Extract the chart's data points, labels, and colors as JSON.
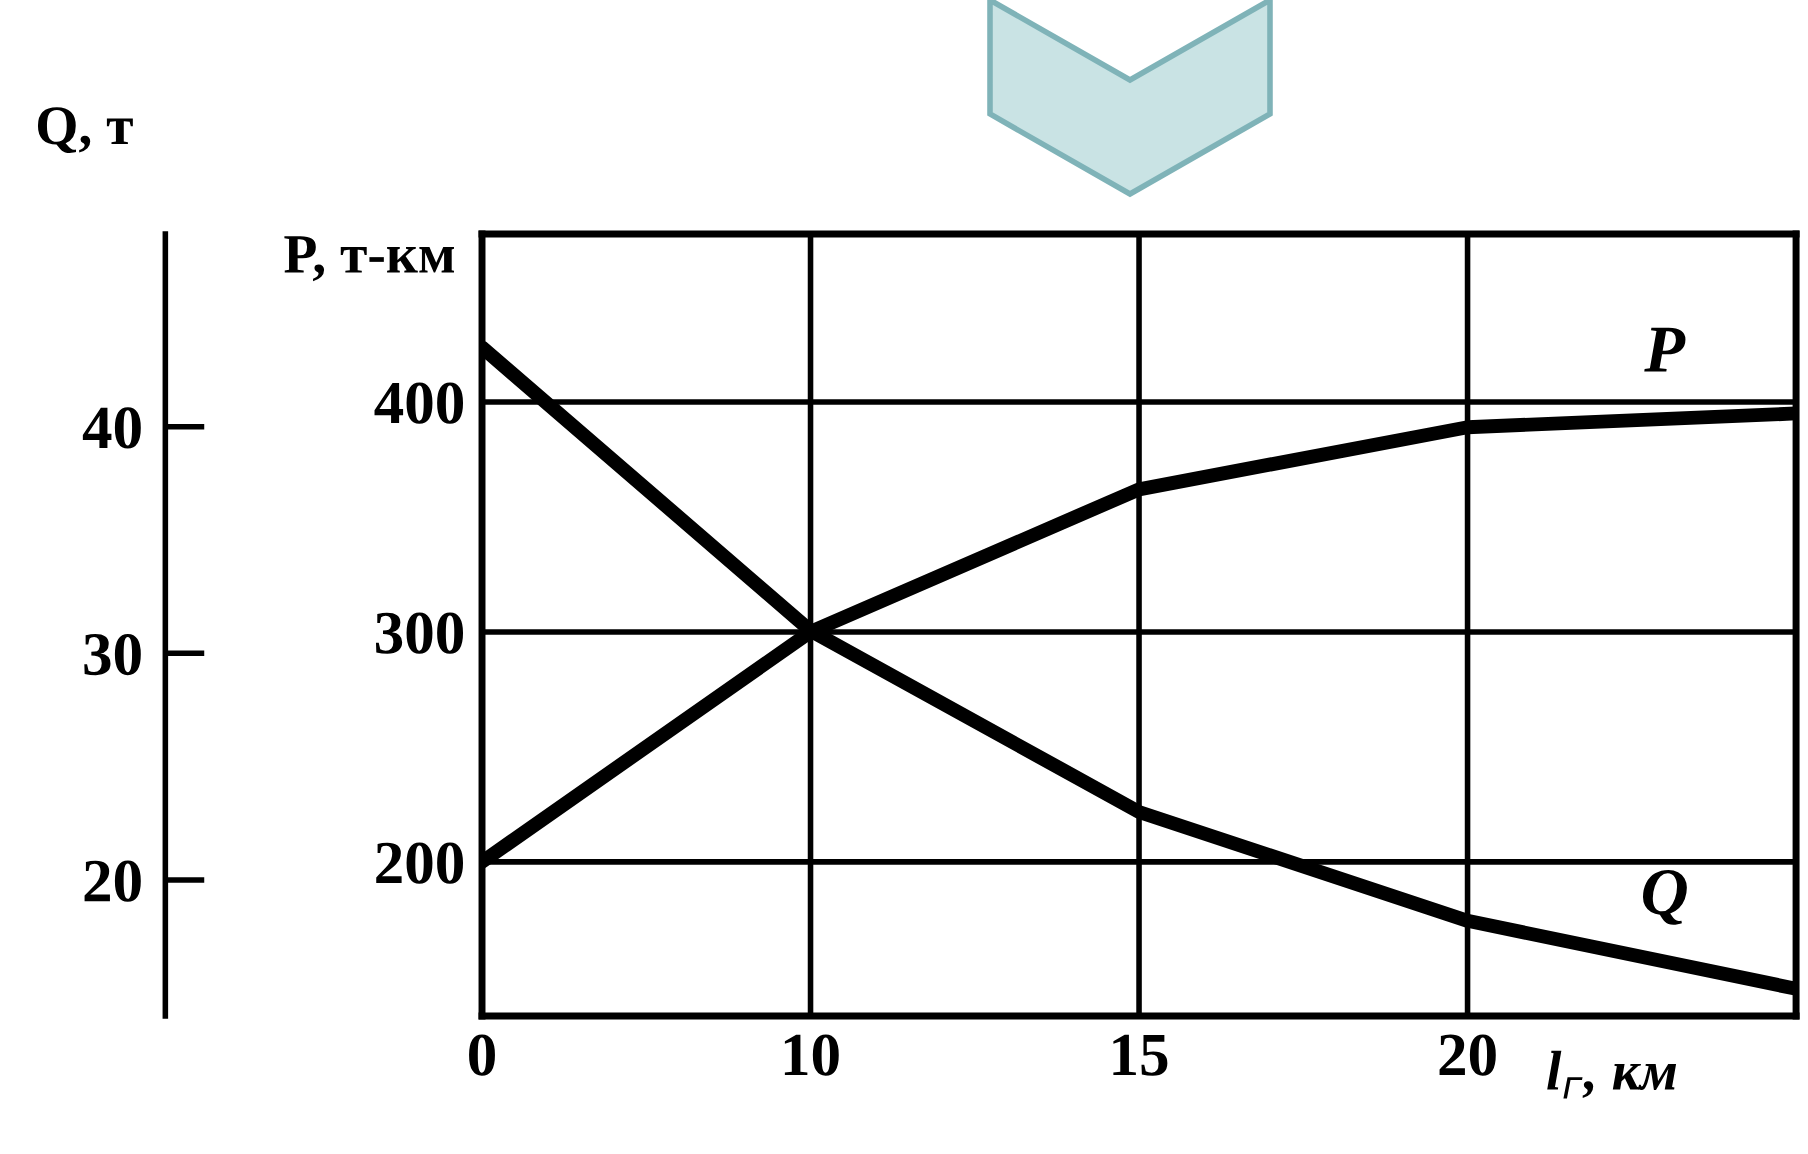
{
  "chart_data": {
    "type": "line",
    "xlabel": "l$_{г}$, км",
    "ylabel": "P, т-км",
    "y2label": "Q, т",
    "categories": [
      "0",
      "10",
      "15",
      "20",
      null
    ],
    "series": [
      {
        "name": "P",
        "color": "#000000",
        "values": [
          200,
          300,
          362,
          389,
          395
        ]
      },
      {
        "name": "Q",
        "color": "#000000",
        "axis": "y2",
        "values": [
          43.5,
          31,
          23,
          18.2,
          15.2
        ]
      }
    ],
    "ylim": [
      133,
      473
    ],
    "yticks": [
      200,
      300,
      400
    ],
    "y2lim": [
      14,
      48.5
    ],
    "y2ticks": [
      20,
      30,
      40
    ],
    "grid": true,
    "line_style": "solid",
    "marker": "none"
  }
}
